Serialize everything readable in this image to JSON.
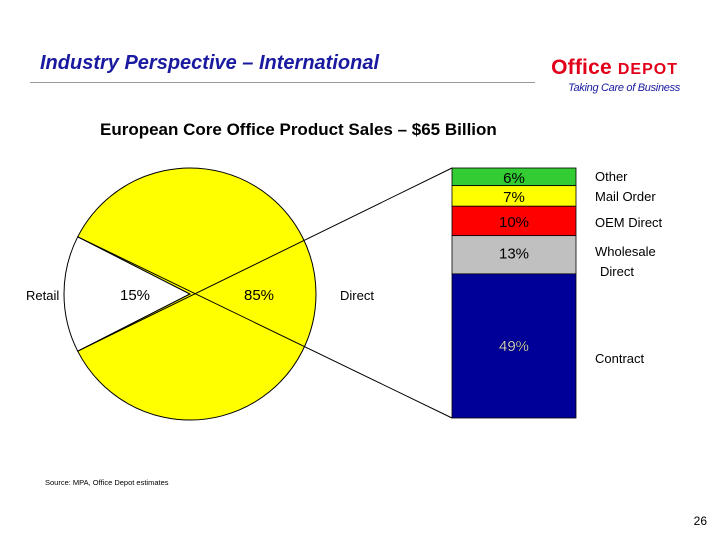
{
  "header": {
    "title": "Industry Perspective – International",
    "logo": {
      "brand_word1": "Office",
      "brand_word2": "DEPOT",
      "tagline": "Taking Care of Business"
    }
  },
  "colors": {
    "title": "#1a1aa0",
    "brand_red": "#e2001a",
    "retail": "#ffffff",
    "direct": "#ffff00",
    "other": "#33cc33",
    "mail_order": "#ffff00",
    "oem_direct": "#ff0000",
    "wholesale_direct": "#c0c0c0",
    "contract": "#000099"
  },
  "chart_data": {
    "type": "pie",
    "title": "European Core Office Product Sales – $65 Billion",
    "pie": {
      "slices": [
        {
          "label": "Retail",
          "value": 15,
          "value_label": "15%",
          "color": "#ffffff"
        },
        {
          "label": "Direct",
          "value": 85,
          "value_label": "85%",
          "color": "#ffff00"
        }
      ]
    },
    "breakdown": {
      "of": "Direct",
      "type": "stacked-bar",
      "segments": [
        {
          "label": "Other",
          "value": 6,
          "value_label": "6%",
          "color": "#33cc33"
        },
        {
          "label": "Mail Order",
          "value": 7,
          "value_label": "7%",
          "color": "#ffff00"
        },
        {
          "label": "OEM Direct",
          "value": 10,
          "value_label": "10%",
          "color": "#ff0000"
        },
        {
          "label": "Wholesale Direct",
          "label_lines": [
            "Wholesale",
            "Direct"
          ],
          "value": 13,
          "value_label": "13%",
          "color": "#c0c0c0"
        },
        {
          "label": "Contract",
          "value": 49,
          "value_label": "49%",
          "color": "#000099"
        }
      ]
    }
  },
  "footer": {
    "source": "Source: MPA, Office Depot estimates",
    "page_number": "26"
  }
}
